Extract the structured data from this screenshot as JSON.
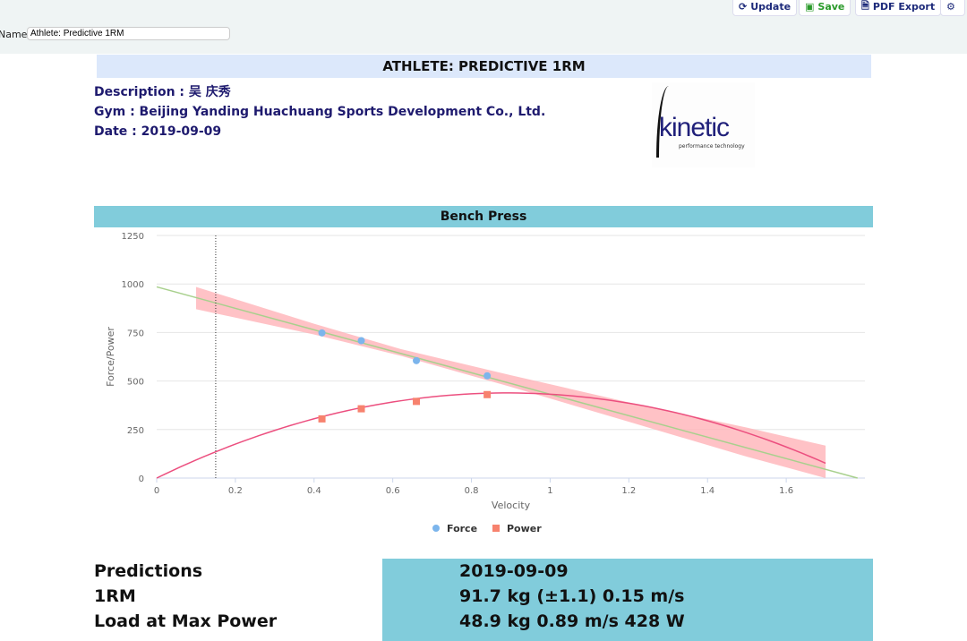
{
  "toolbar": {
    "update": "Update",
    "save": "Save",
    "pdf_export": "PDF Export",
    "settings_icon": "gear-icon"
  },
  "name_field": {
    "label": "Name",
    "value": "Athlete: Predictive 1RM"
  },
  "report": {
    "title": "ATHLETE: PREDICTIVE 1RM",
    "description": "Description : 吴 庆秀",
    "gym": "Gym : Beijing Yanding Huachuang Sports Development Co., Ltd.",
    "date": "Date : 2019-09-09",
    "logo_text": "kinetic",
    "logo_sub": "performance technology"
  },
  "section": {
    "title": "Bench Press"
  },
  "chart_data": {
    "type": "scatter",
    "title": "Bench Press",
    "xlabel": "Velocity",
    "ylabel": "Force/Power",
    "xlim": [
      0,
      1.8
    ],
    "ylim": [
      0,
      1250
    ],
    "xticks": [
      0,
      0.2,
      0.4,
      0.6,
      0.8,
      1,
      1.2,
      1.4,
      1.6
    ],
    "yticks": [
      0,
      250,
      500,
      750,
      1000,
      1250
    ],
    "legend": [
      "Force",
      "Power"
    ],
    "legend_position": "bottom",
    "series": [
      {
        "name": "Force",
        "marker": "circle",
        "color": "#7cb5ec",
        "x": [
          0.42,
          0.52,
          0.66,
          0.84
        ],
        "y": [
          748,
          708,
          605,
          527
        ]
      },
      {
        "name": "Power",
        "marker": "square",
        "color": "#f7826e",
        "x": [
          0.42,
          0.52,
          0.66,
          0.84
        ],
        "y": [
          305,
          357,
          395,
          430
        ]
      }
    ],
    "force_fit": {
      "intercept": 985,
      "slope": -553,
      "color": "#a8d08d"
    },
    "power_fit": {
      "color": "#ec4f7f",
      "x_max": 1.7
    },
    "confidence_band": {
      "color": "#ffb3b8",
      "points": [
        [
          0.1,
          870,
          985
        ],
        [
          0.4,
          740,
          795
        ],
        [
          0.62,
          630,
          665
        ],
        [
          0.9,
          470,
          530
        ],
        [
          1.2,
          290,
          390
        ],
        [
          1.5,
          110,
          260
        ],
        [
          1.7,
          0,
          167
        ]
      ]
    },
    "one_rm_velocity": 0.15
  },
  "predictions": {
    "heading": "Predictions",
    "date": "2019-09-09",
    "one_rm_label": "1RM",
    "one_rm_value": "91.7 kg (±1.1) 0.15 m/s",
    "max_power_label": "Load at Max Power",
    "max_power_value": "48.9 kg 0.89 m/s 428 W"
  }
}
